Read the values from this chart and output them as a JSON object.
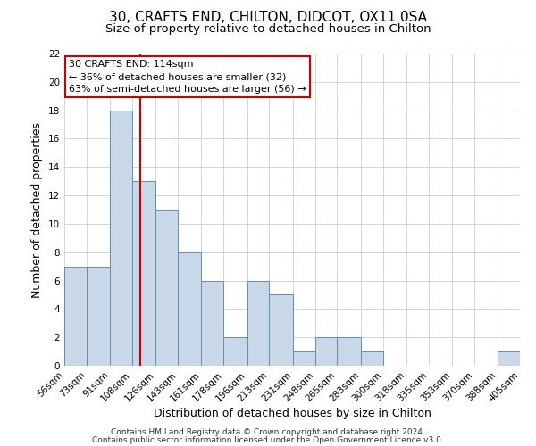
{
  "title": "30, CRAFTS END, CHILTON, DIDCOT, OX11 0SA",
  "subtitle": "Size of property relative to detached houses in Chilton",
  "xlabel": "Distribution of detached houses by size in Chilton",
  "ylabel": "Number of detached properties",
  "bin_edges": [
    56,
    73,
    91,
    108,
    126,
    143,
    161,
    178,
    196,
    213,
    231,
    248,
    265,
    283,
    300,
    318,
    335,
    353,
    370,
    388,
    405
  ],
  "bin_labels": [
    "56sqm",
    "73sqm",
    "91sqm",
    "108sqm",
    "126sqm",
    "143sqm",
    "161sqm",
    "178sqm",
    "196sqm",
    "213sqm",
    "231sqm",
    "248sqm",
    "265sqm",
    "283sqm",
    "300sqm",
    "318sqm",
    "335sqm",
    "353sqm",
    "370sqm",
    "388sqm",
    "405sqm"
  ],
  "counts": [
    7,
    7,
    18,
    13,
    11,
    8,
    6,
    2,
    6,
    5,
    1,
    2,
    2,
    1,
    0,
    0,
    0,
    0,
    0,
    1
  ],
  "bar_color": "#c8d8e8",
  "bar_edge_color": "#6090b0",
  "marker_value": 114,
  "marker_color": "#cc0000",
  "ylim": [
    0,
    22
  ],
  "yticks": [
    0,
    2,
    4,
    6,
    8,
    10,
    12,
    14,
    16,
    18,
    20,
    22
  ],
  "annotation_title": "30 CRAFTS END: 114sqm",
  "annotation_line1": "← 36% of detached houses are smaller (32)",
  "annotation_line2": "63% of semi-detached houses are larger (56) →",
  "annotation_box_color": "#ffffff",
  "annotation_box_edge": "#cc0000",
  "footer_line1": "Contains HM Land Registry data © Crown copyright and database right 2024.",
  "footer_line2": "Contains public sector information licensed under the Open Government Licence v3.0.",
  "background_color": "#ffffff",
  "grid_color": "#c8d8e8",
  "title_fontsize": 11,
  "subtitle_fontsize": 9.5,
  "axis_label_fontsize": 9,
  "tick_fontsize": 7.5,
  "annotation_fontsize": 8,
  "footer_fontsize": 6.5
}
